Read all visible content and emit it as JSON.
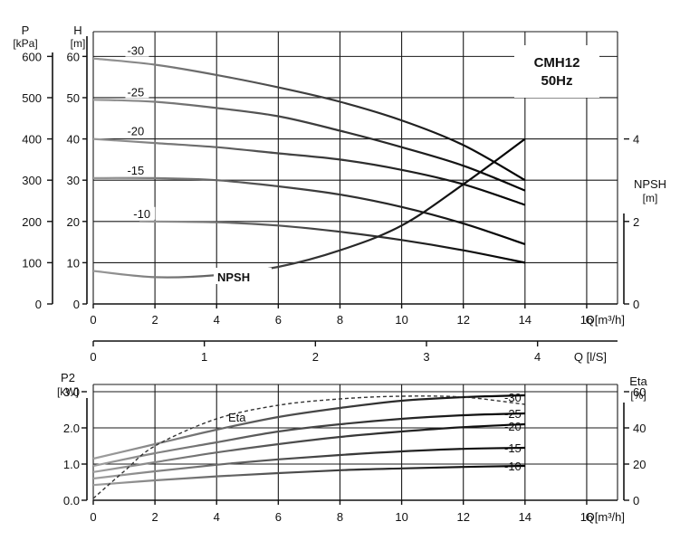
{
  "chart_data": [
    {
      "type": "line",
      "title": "CMH12",
      "subtitle": "50Hz",
      "xlabel": "Q[m³/h]",
      "xlim": [
        0,
        17
      ],
      "x_ticks": [
        0,
        2,
        4,
        6,
        8,
        10,
        12,
        14,
        16
      ],
      "y_left_outer_label": [
        "P",
        "[kPa]"
      ],
      "y_left_outer_ticks": [
        0,
        100,
        200,
        300,
        400,
        500,
        600
      ],
      "y_left_inner_label": [
        "H",
        "[m]"
      ],
      "y_left_inner_ticks": [
        0,
        10,
        20,
        30,
        40,
        50,
        60
      ],
      "ylim": [
        0,
        66
      ],
      "y_right_label": [
        "NPSH",
        "[m]"
      ],
      "y_right_ticks": [
        0,
        2,
        4
      ],
      "y_right_lim": [
        0,
        6.6
      ],
      "grid": true,
      "series": [
        {
          "name": "-30",
          "x": [
            0,
            2,
            4,
            6,
            8,
            10,
            12,
            14
          ],
          "values": [
            59.5,
            58,
            55.5,
            52.5,
            49,
            44.5,
            38.5,
            30
          ]
        },
        {
          "name": "-25",
          "x": [
            0,
            2,
            4,
            6,
            8,
            10,
            12,
            14
          ],
          "values": [
            49.5,
            49,
            47.5,
            45.5,
            42,
            38,
            33.5,
            27.5
          ]
        },
        {
          "name": "-20",
          "x": [
            0,
            2,
            4,
            6,
            8,
            10,
            12,
            14
          ],
          "values": [
            40,
            39,
            38,
            36.5,
            35,
            32.5,
            29,
            24
          ]
        },
        {
          "name": "-15",
          "x": [
            0,
            2,
            4,
            6,
            8,
            10,
            12,
            14
          ],
          "values": [
            30.5,
            30.5,
            30,
            28.5,
            26.5,
            23.5,
            19.5,
            14.5
          ]
        },
        {
          "name": "-10",
          "x": [
            1.5,
            4,
            6,
            8,
            10,
            12,
            14
          ],
          "values": [
            20,
            19.8,
            19,
            17.5,
            15.5,
            13,
            10
          ]
        }
      ],
      "npsh": {
        "name": "NPSH",
        "x": [
          0,
          2,
          4,
          6,
          8,
          10,
          12,
          14
        ],
        "values": [
          0.8,
          0.65,
          0.7,
          0.9,
          1.3,
          1.9,
          2.9,
          4.0
        ]
      }
    },
    {
      "type": "axis",
      "xlabel": "Q [l/S]",
      "ticks": [
        0,
        1,
        2,
        3,
        4
      ],
      "xlim": [
        0,
        4.72
      ]
    },
    {
      "type": "line",
      "xlabel": "Q[m³/h]",
      "xlim": [
        0,
        17
      ],
      "x_ticks": [
        0,
        2,
        4,
        6,
        8,
        10,
        12,
        14,
        16
      ],
      "y_left_label": [
        "P2",
        "[kW]"
      ],
      "y_left_ticks": [
        "0.0",
        "1.0",
        "2.0",
        "3.0"
      ],
      "ylim": [
        0,
        3.2
      ],
      "y_right_label": [
        "Eta",
        "[%]"
      ],
      "y_right_ticks": [
        0,
        20,
        40,
        60
      ],
      "y_right_lim": [
        0,
        64
      ],
      "grid": true,
      "series": [
        {
          "name": "-30",
          "x": [
            0,
            2,
            4,
            6,
            8,
            10,
            12,
            14
          ],
          "values": [
            1.15,
            1.55,
            1.95,
            2.3,
            2.55,
            2.75,
            2.85,
            2.9
          ]
        },
        {
          "name": "-25",
          "x": [
            0,
            2,
            4,
            6,
            8,
            10,
            12,
            14
          ],
          "values": [
            0.95,
            1.3,
            1.6,
            1.9,
            2.1,
            2.25,
            2.35,
            2.4
          ]
        },
        {
          "name": "-20",
          "x": [
            0,
            2,
            4,
            6,
            8,
            10,
            12,
            14
          ],
          "values": [
            0.78,
            1.05,
            1.32,
            1.55,
            1.75,
            1.9,
            2.02,
            2.1
          ]
        },
        {
          "name": "-15",
          "x": [
            0,
            2,
            4,
            6,
            8,
            10,
            12,
            14
          ],
          "values": [
            0.6,
            0.8,
            0.98,
            1.13,
            1.25,
            1.35,
            1.42,
            1.45
          ]
        },
        {
          "name": "-10",
          "x": [
            0,
            2,
            4,
            6,
            8,
            10,
            12,
            14
          ],
          "values": [
            0.42,
            0.55,
            0.66,
            0.75,
            0.83,
            0.88,
            0.92,
            0.95
          ]
        }
      ],
      "eta": {
        "name": "Eta",
        "x": [
          0,
          1,
          2,
          4,
          6,
          8,
          10,
          12,
          14
        ],
        "values": [
          1,
          16,
          30,
          45,
          52.5,
          56,
          57.5,
          57,
          53
        ]
      }
    }
  ]
}
